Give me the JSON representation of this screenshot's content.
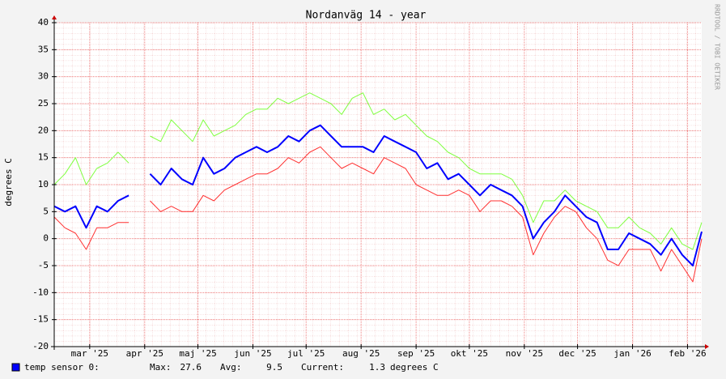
{
  "chart_data": {
    "type": "line",
    "title": "Nordanväg 14 - year",
    "y_label": "degrees C",
    "watermark": "RRDTOOL / TOBI OETIKER",
    "x": [
      0,
      6,
      12,
      18,
      24,
      30,
      36,
      42,
      48,
      54,
      60,
      66,
      72,
      78,
      84,
      90,
      96,
      102,
      108,
      114,
      120,
      126,
      132,
      138,
      144,
      150,
      156,
      162,
      168,
      174,
      180,
      186,
      192,
      198,
      204,
      210,
      216,
      222,
      228,
      234,
      240,
      246,
      252,
      258,
      264,
      270,
      276,
      282,
      288,
      294,
      300,
      306,
      312,
      318,
      324,
      330,
      336,
      342,
      348,
      354,
      360,
      365
    ],
    "xlim": [
      0,
      365
    ],
    "xticks": [
      {
        "value": 20,
        "label": "mar '25"
      },
      {
        "value": 51,
        "label": "apr '25"
      },
      {
        "value": 81,
        "label": "maj '25"
      },
      {
        "value": 112,
        "label": "jun '25"
      },
      {
        "value": 142,
        "label": "jul '25"
      },
      {
        "value": 173,
        "label": "aug '25"
      },
      {
        "value": 204,
        "label": "sep '25"
      },
      {
        "value": 234,
        "label": "okt '25"
      },
      {
        "value": 265,
        "label": "nov '25"
      },
      {
        "value": 295,
        "label": "dec '25"
      },
      {
        "value": 326,
        "label": "jan '26"
      },
      {
        "value": 357,
        "label": "feb '26"
      }
    ],
    "ylim": [
      -20,
      40
    ],
    "yticks": [
      -20,
      -15,
      -10,
      -5,
      0,
      5,
      10,
      15,
      20,
      25,
      30,
      35,
      40
    ],
    "grid": true,
    "series": [
      {
        "color": "#7fff3f",
        "values": [
          10,
          12,
          15,
          10,
          13,
          14,
          16,
          14,
          null,
          19,
          18,
          22,
          20,
          18,
          22,
          19,
          20,
          21,
          23,
          24,
          24,
          26,
          25,
          26,
          27,
          26,
          25,
          23,
          26,
          27,
          23,
          24,
          22,
          23,
          21,
          19,
          18,
          16,
          15,
          13,
          12,
          12,
          12,
          11,
          8,
          3,
          7,
          7,
          9,
          7,
          6,
          5,
          2,
          2,
          4,
          2,
          1,
          -1,
          2,
          -1,
          -2,
          3
        ]
      },
      {
        "color": "#ff3030",
        "values": [
          4,
          2,
          1,
          -2,
          2,
          2,
          3,
          3,
          null,
          7,
          5,
          6,
          5,
          5,
          8,
          7,
          9,
          10,
          11,
          12,
          12,
          13,
          15,
          14,
          16,
          17,
          15,
          13,
          14,
          13,
          12,
          15,
          14,
          13,
          10,
          9,
          8,
          8,
          9,
          8,
          5,
          7,
          7,
          6,
          4,
          -3,
          1,
          4,
          6,
          5,
          2,
          0,
          -4,
          -5,
          -2,
          -2,
          -2,
          -6,
          -2,
          -5,
          -8,
          0
        ]
      },
      {
        "name": "temp sensor 0:",
        "color": "#0000ff",
        "values": [
          6,
          5,
          6,
          2,
          6,
          5,
          7,
          8,
          null,
          12,
          10,
          13,
          11,
          10,
          15,
          12,
          13,
          15,
          16,
          17,
          16,
          17,
          19,
          18,
          20,
          21,
          19,
          17,
          17,
          17,
          16,
          19,
          18,
          17,
          16,
          13,
          14,
          11,
          12,
          10,
          8,
          10,
          9,
          8,
          6,
          0,
          3,
          5,
          8,
          6,
          4,
          3,
          -2,
          -2,
          1,
          0,
          -1,
          -3,
          0,
          -3,
          -5,
          1.3
        ]
      }
    ],
    "stats": [
      {
        "label": "Max:",
        "value": 27.6
      },
      {
        "label": "Avg:",
        "value": 9.5
      },
      {
        "label": "Current:",
        "value": 1.3,
        "unit": "degrees C"
      }
    ]
  }
}
